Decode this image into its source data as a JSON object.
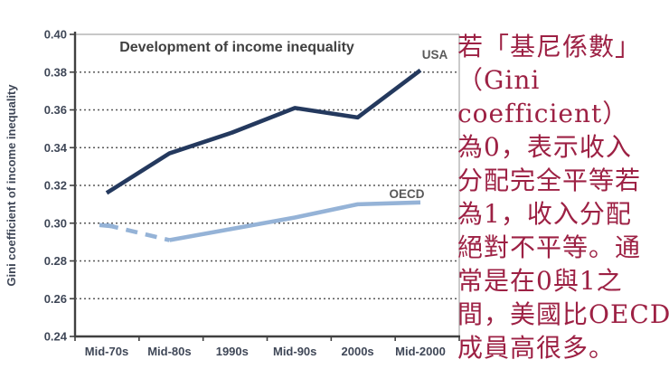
{
  "chart_data": {
    "type": "line",
    "title": "Development of income inequality",
    "ylabel": "Gini coefficient of income inequality",
    "categories": [
      "Mid-70s",
      "Mid-80s",
      "1990s",
      "Mid-90s",
      "2000s",
      "Mid-2000"
    ],
    "series": [
      {
        "name": "USA",
        "color": "#24395e",
        "values": [
          0.316,
          0.337,
          0.348,
          0.361,
          0.356,
          0.381
        ],
        "dash_first_segment": false
      },
      {
        "name": "OECD",
        "color": "#95b3d7",
        "values": [
          0.299,
          0.291,
          0.297,
          0.303,
          0.31,
          0.311
        ],
        "dash_first_segment": true
      }
    ],
    "ylim": [
      0.24,
      0.4
    ],
    "yticks": [
      "0.40",
      "0.38",
      "0.36",
      "0.34",
      "0.32",
      "0.30",
      "0.28",
      "0.26",
      "0.24"
    ],
    "grid": "dotted-horizontal",
    "legend_position": "inline-end-of-line-labels",
    "colors": {
      "grid": "#595959",
      "axis": "#404040",
      "frame": "#a6a6a6",
      "tick_labels": "#3f4757",
      "series_labels": "#595959"
    }
  },
  "annotation": {
    "color": "#9d2144",
    "lines": [
      "若「基尼係數」",
      "（Gini",
      "coefficient）",
      "為0，表示收入",
      "分配完全平等若",
      "為1，收入分配",
      "絕對不平等。通",
      "常是在0與1之",
      "間，美國比OECD",
      "成員高很多。"
    ]
  }
}
